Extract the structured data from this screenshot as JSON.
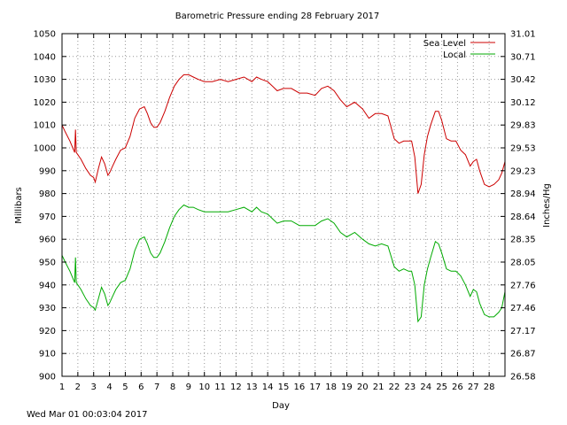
{
  "chart_data": {
    "type": "line",
    "title": "Barometric Pressure ending 28 February 2017",
    "xlabel": "Day",
    "ylabel": "Millibars",
    "y2label": "Inches/Hg",
    "xlim": [
      1,
      29
    ],
    "ylim": [
      900,
      1050
    ],
    "grid": true,
    "legend_position": "top-right",
    "x_ticks": [
      "1",
      "2",
      "3",
      "4",
      "5",
      "6",
      "7",
      "8",
      "9",
      "10",
      "11",
      "12",
      "13",
      "14",
      "15",
      "16",
      "17",
      "18",
      "19",
      "20",
      "21",
      "22",
      "23",
      "24",
      "25",
      "26",
      "27",
      "28"
    ],
    "y_ticks": [
      "900",
      "910",
      "920",
      "930",
      "940",
      "950",
      "960",
      "970",
      "980",
      "990",
      "1000",
      "1010",
      "1020",
      "1030",
      "1040",
      "1050"
    ],
    "y2_ticks": [
      "26.58",
      "26.87",
      "27.17",
      "27.46",
      "27.76",
      "28.05",
      "28.35",
      "28.64",
      "28.94",
      "29.23",
      "29.53",
      "29.83",
      "30.12",
      "30.42",
      "30.71",
      "31.01"
    ],
    "series": [
      {
        "name": "Sea Level",
        "color": "#cc0000",
        "x": [
          1.0,
          1.2,
          1.5,
          1.8,
          1.85,
          1.9,
          2.2,
          2.5,
          2.8,
          3.0,
          3.1,
          3.3,
          3.5,
          3.7,
          3.9,
          4.0,
          4.2,
          4.4,
          4.7,
          5.0,
          5.3,
          5.6,
          5.9,
          6.2,
          6.4,
          6.6,
          6.8,
          7.0,
          7.2,
          7.5,
          7.8,
          8.1,
          8.4,
          8.7,
          9.0,
          9.3,
          9.6,
          10.0,
          10.5,
          11.0,
          11.5,
          12.0,
          12.5,
          13.0,
          13.3,
          13.6,
          14.0,
          14.3,
          14.6,
          15.0,
          15.5,
          16.0,
          16.5,
          17.0,
          17.4,
          17.8,
          18.2,
          18.6,
          19.0,
          19.5,
          20.0,
          20.4,
          20.8,
          21.2,
          21.6,
          22.0,
          22.3,
          22.6,
          22.9,
          23.1,
          23.3,
          23.5,
          23.7,
          23.9,
          24.1,
          24.3,
          24.6,
          24.8,
          25.0,
          25.3,
          25.6,
          25.9,
          26.2,
          26.5,
          26.8,
          27.0,
          27.2,
          27.4,
          27.7,
          28.0,
          28.3,
          28.6,
          28.8,
          29.0
        ],
        "values": [
          1010,
          1007,
          1003,
          998,
          1008,
          998,
          995,
          991,
          988,
          987,
          985,
          991,
          996,
          993,
          988,
          989,
          992,
          995,
          999,
          1000,
          1005,
          1013,
          1017,
          1018,
          1015,
          1011,
          1009,
          1009,
          1011,
          1016,
          1022,
          1027,
          1030,
          1032,
          1032,
          1031,
          1030,
          1029,
          1029,
          1030,
          1029,
          1030,
          1031,
          1029,
          1031,
          1030,
          1029,
          1027,
          1025,
          1026,
          1026,
          1024,
          1024,
          1023,
          1026,
          1027,
          1025,
          1021,
          1018,
          1020,
          1017,
          1013,
          1015,
          1015,
          1014,
          1004,
          1002,
          1003,
          1003,
          1003,
          996,
          980,
          984,
          997,
          1005,
          1010,
          1016,
          1016,
          1012,
          1004,
          1003,
          1003,
          999,
          997,
          992,
          994,
          995,
          990,
          984,
          983,
          984,
          986,
          989,
          994
        ]
      },
      {
        "name": "Local",
        "color": "#00aa00",
        "x": [
          1.0,
          1.2,
          1.5,
          1.8,
          1.85,
          1.9,
          2.2,
          2.5,
          2.8,
          3.0,
          3.1,
          3.3,
          3.5,
          3.7,
          3.9,
          4.0,
          4.2,
          4.4,
          4.7,
          5.0,
          5.3,
          5.6,
          5.9,
          6.2,
          6.4,
          6.6,
          6.8,
          7.0,
          7.2,
          7.5,
          7.8,
          8.1,
          8.4,
          8.7,
          9.0,
          9.3,
          9.6,
          10.0,
          10.5,
          11.0,
          11.5,
          12.0,
          12.5,
          13.0,
          13.3,
          13.6,
          14.0,
          14.3,
          14.6,
          15.0,
          15.5,
          16.0,
          16.5,
          17.0,
          17.4,
          17.8,
          18.2,
          18.6,
          19.0,
          19.5,
          20.0,
          20.4,
          20.8,
          21.2,
          21.6,
          22.0,
          22.3,
          22.6,
          22.9,
          23.1,
          23.3,
          23.5,
          23.7,
          23.9,
          24.1,
          24.3,
          24.6,
          24.8,
          25.0,
          25.3,
          25.6,
          25.9,
          26.2,
          26.5,
          26.8,
          27.0,
          27.2,
          27.4,
          27.7,
          28.0,
          28.3,
          28.6,
          28.8,
          29.0
        ],
        "values": [
          953,
          950,
          946,
          941,
          952,
          941,
          938,
          934,
          931,
          930,
          929,
          934,
          939,
          936,
          931,
          932,
          935,
          938,
          941,
          942,
          947,
          955,
          960,
          961,
          958,
          954,
          952,
          952,
          954,
          959,
          965,
          970,
          973,
          975,
          974,
          974,
          973,
          972,
          972,
          972,
          972,
          973,
          974,
          972,
          974,
          972,
          971,
          969,
          967,
          968,
          968,
          966,
          966,
          966,
          968,
          969,
          967,
          963,
          961,
          963,
          960,
          958,
          957,
          958,
          957,
          948,
          946,
          947,
          946,
          946,
          940,
          924,
          926,
          940,
          947,
          952,
          959,
          958,
          954,
          947,
          946,
          946,
          944,
          940,
          935,
          938,
          937,
          932,
          927,
          926,
          926,
          928,
          930,
          937
        ]
      }
    ]
  },
  "footer_timestamp": "Wed Mar 01 00:03:04 2017"
}
